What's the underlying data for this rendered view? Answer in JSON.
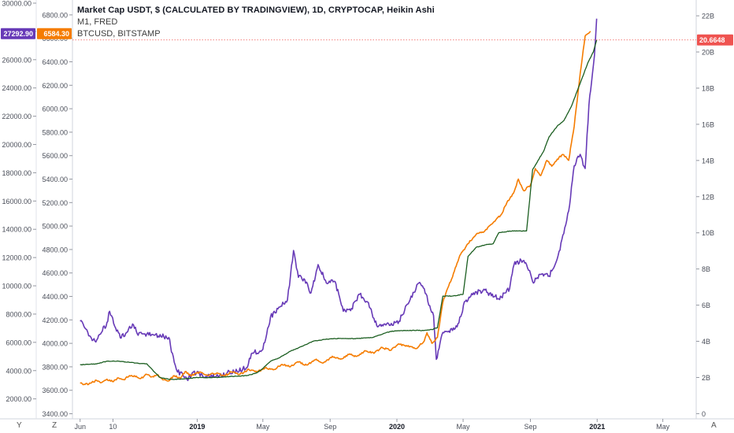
{
  "legend": {
    "line1": "Market Cap USDT, $ (CALCULATED BY TRADINGVIEW), 1D, CRYPTOCAP, Heikin Ashi",
    "line2": "M1, FRED",
    "line3": "BTCUSD, BITSTAMP"
  },
  "axis_buttons": {
    "left_y": "Y",
    "left_z": "Z",
    "right_a": "A"
  },
  "chart_data": {
    "type": "line",
    "grid": false,
    "x_axis": {
      "ticks": [
        "Jun",
        "10",
        "2019",
        "May",
        "Sep",
        "2020",
        "May",
        "Sep",
        "2021",
        "May"
      ],
      "bold_ticks": [
        "2019",
        "2020",
        "2021"
      ],
      "range": [
        "2018-05-18",
        "2021-07-01"
      ]
    },
    "axes": {
      "btc_axis": {
        "side": "left",
        "ticks": [
          "30000.00",
          "28000.00",
          "26000.00",
          "24000.00",
          "22000.00",
          "20000.00",
          "18000.00",
          "16000.00",
          "14000.00",
          "12000.00",
          "10000.00",
          "8000.00",
          "6000.00",
          "4000.00",
          "2000.00"
        ],
        "range": [
          700,
          30000
        ]
      },
      "m1_axis": {
        "side": "left-inner",
        "ticks": [
          "6800.00",
          "6600.00",
          "6400.00",
          "6200.00",
          "6000.00",
          "5800.00",
          "5600.00",
          "5400.00",
          "5200.00",
          "5000.00",
          "4800.00",
          "4600.00",
          "4400.00",
          "4200.00",
          "4000.00",
          "3800.00",
          "3600.00",
          "3400.00"
        ],
        "range": [
          3370,
          6900
        ]
      },
      "usdt_axis": {
        "side": "right",
        "ticks": [
          "22B",
          "20B",
          "18B",
          "16B",
          "14B",
          "12B",
          "10B",
          "8B",
          "6B",
          "4B",
          "2B",
          "0"
        ],
        "range": [
          -0.2,
          22.7
        ]
      }
    },
    "last_value_labels": {
      "btc": "27292.90",
      "m1": "6584.30",
      "usdt": "20.6648"
    },
    "series": [
      {
        "name": "BTCUSD, BITSTAMP",
        "axis": "btc_axis",
        "color": "#673ab7",
        "points": [
          [
            "2018-06-01",
            7500
          ],
          [
            "2018-06-10",
            7000
          ],
          [
            "2018-06-20",
            6400
          ],
          [
            "2018-06-28",
            6100
          ],
          [
            "2018-07-10",
            6700
          ],
          [
            "2018-07-20",
            7400
          ],
          [
            "2018-07-25",
            8200
          ],
          [
            "2018-08-05",
            7000
          ],
          [
            "2018-08-15",
            6300
          ],
          [
            "2018-08-25",
            6700
          ],
          [
            "2018-09-05",
            7300
          ],
          [
            "2018-09-15",
            6500
          ],
          [
            "2018-10-01",
            6600
          ],
          [
            "2018-10-15",
            6500
          ],
          [
            "2018-11-01",
            6400
          ],
          [
            "2018-11-10",
            6350
          ],
          [
            "2018-11-20",
            4600
          ],
          [
            "2018-11-26",
            3900
          ],
          [
            "2018-12-05",
            3800
          ],
          [
            "2018-12-15",
            3300
          ],
          [
            "2018-12-25",
            3900
          ],
          [
            "2019-01-10",
            3700
          ],
          [
            "2019-01-25",
            3550
          ],
          [
            "2019-02-10",
            3600
          ],
          [
            "2019-02-25",
            3850
          ],
          [
            "2019-03-15",
            3950
          ],
          [
            "2019-04-01",
            4200
          ],
          [
            "2019-04-10",
            5200
          ],
          [
            "2019-05-01",
            5500
          ],
          [
            "2019-05-15",
            7800
          ],
          [
            "2019-06-01",
            8500
          ],
          [
            "2019-06-15",
            9000
          ],
          [
            "2019-06-26",
            12500
          ],
          [
            "2019-07-05",
            10600
          ],
          [
            "2019-07-15",
            10500
          ],
          [
            "2019-07-28",
            9500
          ],
          [
            "2019-08-10",
            11500
          ],
          [
            "2019-08-25",
            10200
          ],
          [
            "2019-09-10",
            10300
          ],
          [
            "2019-09-25",
            8200
          ],
          [
            "2019-10-10",
            8400
          ],
          [
            "2019-10-25",
            9400
          ],
          [
            "2019-11-10",
            8800
          ],
          [
            "2019-11-25",
            7200
          ],
          [
            "2019-12-10",
            7300
          ],
          [
            "2019-12-20",
            7200
          ],
          [
            "2020-01-05",
            7500
          ],
          [
            "2020-01-20",
            8700
          ],
          [
            "2020-02-10",
            10200
          ],
          [
            "2020-02-20",
            9800
          ],
          [
            "2020-03-01",
            8600
          ],
          [
            "2020-03-08",
            7900
          ],
          [
            "2020-03-13",
            4800
          ],
          [
            "2020-03-25",
            6700
          ],
          [
            "2020-04-05",
            6800
          ],
          [
            "2020-04-20",
            7100
          ],
          [
            "2020-05-05",
            8900
          ],
          [
            "2020-05-20",
            9500
          ],
          [
            "2020-06-10",
            9700
          ],
          [
            "2020-06-25",
            9200
          ],
          [
            "2020-07-10",
            9200
          ],
          [
            "2020-07-25",
            9800
          ],
          [
            "2020-08-02",
            11500
          ],
          [
            "2020-08-15",
            11800
          ],
          [
            "2020-08-25",
            11500
          ],
          [
            "2020-09-05",
            10300
          ],
          [
            "2020-09-20",
            10800
          ],
          [
            "2020-10-05",
            10700
          ],
          [
            "2020-10-20",
            11900
          ],
          [
            "2020-11-01",
            13700
          ],
          [
            "2020-11-10",
            15300
          ],
          [
            "2020-11-20",
            18500
          ],
          [
            "2020-11-25",
            19000
          ],
          [
            "2020-12-01",
            19300
          ],
          [
            "2020-12-10",
            18300
          ],
          [
            "2020-12-17",
            22800
          ],
          [
            "2020-12-20",
            23800
          ],
          [
            "2020-12-27",
            26300
          ],
          [
            "2020-12-31",
            28900
          ]
        ]
      },
      {
        "name": "M1, FRED",
        "axis": "m1_axis",
        "color": "#f57c00",
        "points": [
          [
            "2018-06-01",
            3660
          ],
          [
            "2018-06-10",
            3650
          ],
          [
            "2018-06-20",
            3660
          ],
          [
            "2018-07-01",
            3685
          ],
          [
            "2018-07-10",
            3665
          ],
          [
            "2018-07-20",
            3695
          ],
          [
            "2018-07-30",
            3675
          ],
          [
            "2018-08-10",
            3705
          ],
          [
            "2018-08-20",
            3690
          ],
          [
            "2018-08-30",
            3725
          ],
          [
            "2018-09-10",
            3715
          ],
          [
            "2018-09-20",
            3700
          ],
          [
            "2018-10-01",
            3735
          ],
          [
            "2018-10-10",
            3715
          ],
          [
            "2018-10-20",
            3730
          ],
          [
            "2018-11-01",
            3690
          ],
          [
            "2018-11-10",
            3680
          ],
          [
            "2018-11-20",
            3725
          ],
          [
            "2018-12-01",
            3700
          ],
          [
            "2018-12-10",
            3760
          ],
          [
            "2018-12-20",
            3725
          ],
          [
            "2019-01-05",
            3755
          ],
          [
            "2019-01-20",
            3730
          ],
          [
            "2019-02-05",
            3745
          ],
          [
            "2019-02-20",
            3725
          ],
          [
            "2019-03-05",
            3755
          ],
          [
            "2019-03-20",
            3735
          ],
          [
            "2019-04-05",
            3780
          ],
          [
            "2019-04-20",
            3755
          ],
          [
            "2019-05-05",
            3790
          ],
          [
            "2019-05-20",
            3775
          ],
          [
            "2019-06-05",
            3820
          ],
          [
            "2019-06-20",
            3800
          ],
          [
            "2019-07-05",
            3840
          ],
          [
            "2019-07-20",
            3815
          ],
          [
            "2019-08-05",
            3860
          ],
          [
            "2019-08-20",
            3835
          ],
          [
            "2019-09-05",
            3890
          ],
          [
            "2019-09-20",
            3865
          ],
          [
            "2019-10-05",
            3905
          ],
          [
            "2019-10-20",
            3890
          ],
          [
            "2019-11-05",
            3935
          ],
          [
            "2019-11-20",
            3915
          ],
          [
            "2019-12-05",
            3965
          ],
          [
            "2019-12-20",
            3940
          ],
          [
            "2020-01-05",
            3995
          ],
          [
            "2020-01-20",
            3975
          ],
          [
            "2020-02-05",
            3955
          ],
          [
            "2020-02-20",
            4020
          ],
          [
            "2020-02-25",
            4090
          ],
          [
            "2020-03-05",
            4000
          ],
          [
            "2020-03-15",
            4050
          ],
          [
            "2020-03-25",
            4350
          ],
          [
            "2020-04-01",
            4450
          ],
          [
            "2020-04-10",
            4550
          ],
          [
            "2020-04-25",
            4750
          ],
          [
            "2020-05-10",
            4850
          ],
          [
            "2020-05-25",
            4930
          ],
          [
            "2020-06-10",
            4960
          ],
          [
            "2020-06-25",
            5030
          ],
          [
            "2020-07-10",
            5100
          ],
          [
            "2020-07-20",
            5200
          ],
          [
            "2020-08-01",
            5280
          ],
          [
            "2020-08-10",
            5400
          ],
          [
            "2020-08-20",
            5300
          ],
          [
            "2020-09-01",
            5350
          ],
          [
            "2020-09-10",
            5490
          ],
          [
            "2020-09-20",
            5430
          ],
          [
            "2020-10-01",
            5560
          ],
          [
            "2020-10-10",
            5510
          ],
          [
            "2020-10-20",
            5570
          ],
          [
            "2020-10-30",
            5610
          ],
          [
            "2020-11-10",
            5560
          ],
          [
            "2020-11-20",
            5850
          ],
          [
            "2020-12-01",
            6300
          ],
          [
            "2020-12-10",
            6620
          ],
          [
            "2020-12-20",
            6660
          ]
        ]
      },
      {
        "name": "Market Cap USDT",
        "axis": "usdt_axis",
        "color": "#1b5e20",
        "points": [
          [
            "2018-06-01",
            2.7
          ],
          [
            "2018-07-01",
            2.75
          ],
          [
            "2018-07-20",
            2.9
          ],
          [
            "2018-08-10",
            2.9
          ],
          [
            "2018-09-10",
            2.8
          ],
          [
            "2018-10-01",
            2.75
          ],
          [
            "2018-10-15",
            2.3
          ],
          [
            "2018-10-25",
            2.0
          ],
          [
            "2018-11-10",
            1.9
          ],
          [
            "2018-12-01",
            1.9
          ],
          [
            "2019-01-01",
            2.0
          ],
          [
            "2019-02-01",
            2.0
          ],
          [
            "2019-03-01",
            2.05
          ],
          [
            "2019-04-01",
            2.1
          ],
          [
            "2019-04-20",
            2.25
          ],
          [
            "2019-05-01",
            2.5
          ],
          [
            "2019-05-15",
            2.9
          ],
          [
            "2019-06-01",
            3.1
          ],
          [
            "2019-06-20",
            3.45
          ],
          [
            "2019-07-10",
            3.7
          ],
          [
            "2019-08-01",
            4.0
          ],
          [
            "2019-08-20",
            4.1
          ],
          [
            "2019-09-10",
            4.15
          ],
          [
            "2019-10-15",
            4.15
          ],
          [
            "2019-11-15",
            4.2
          ],
          [
            "2019-12-20",
            4.55
          ],
          [
            "2020-01-20",
            4.6
          ],
          [
            "2020-02-20",
            4.6
          ],
          [
            "2020-03-05",
            4.65
          ],
          [
            "2020-03-15",
            4.75
          ],
          [
            "2020-03-25",
            6.5
          ],
          [
            "2020-04-10",
            6.5
          ],
          [
            "2020-05-01",
            6.6
          ],
          [
            "2020-05-10",
            8.7
          ],
          [
            "2020-05-25",
            9.2
          ],
          [
            "2020-06-05",
            9.3
          ],
          [
            "2020-06-25",
            9.4
          ],
          [
            "2020-07-05",
            10.0
          ],
          [
            "2020-07-25",
            10.1
          ],
          [
            "2020-08-10",
            10.1
          ],
          [
            "2020-08-25",
            10.1
          ],
          [
            "2020-09-05",
            13.5
          ],
          [
            "2020-09-15",
            14.0
          ],
          [
            "2020-09-25",
            14.5
          ],
          [
            "2020-10-05",
            15.3
          ],
          [
            "2020-10-20",
            15.9
          ],
          [
            "2020-11-01",
            16.2
          ],
          [
            "2020-11-15",
            17.0
          ],
          [
            "2020-11-25",
            17.8
          ],
          [
            "2020-12-05",
            18.6
          ],
          [
            "2020-12-15",
            19.4
          ],
          [
            "2020-12-25",
            20.0
          ],
          [
            "2020-12-31",
            20.66
          ]
        ]
      }
    ]
  }
}
